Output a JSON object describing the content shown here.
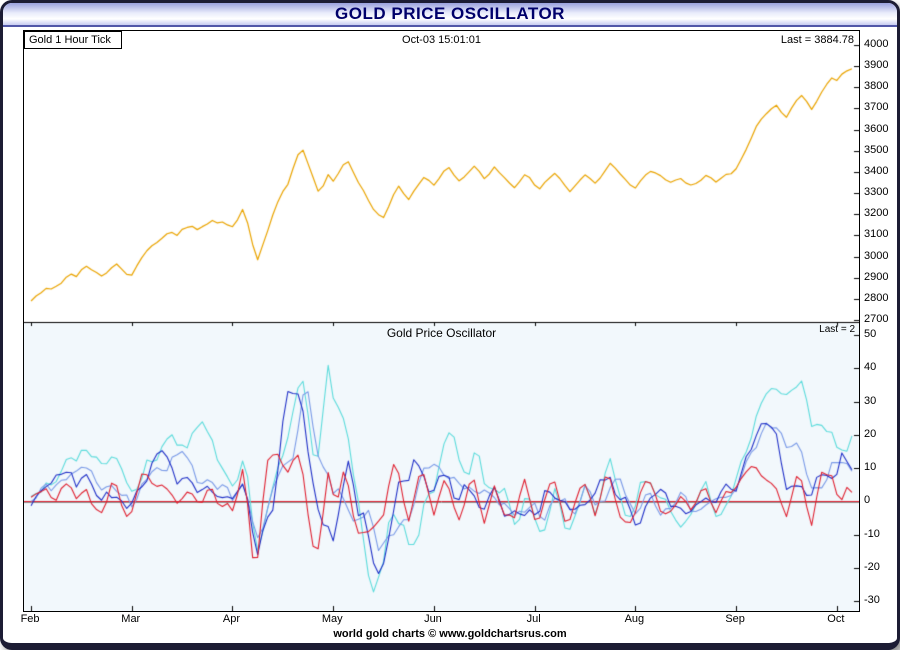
{
  "header": {
    "title": "GOLD PRICE OSCILLATOR"
  },
  "price_panel": {
    "label": "Gold 1 Hour Tick",
    "timestamp": "Oct-03  15:01:01",
    "last_label": "Last = 3884.78"
  },
  "oscillator_panel": {
    "label": "Gold Price Oscillator",
    "last_label": "Last = 2"
  },
  "footer": {
    "credit": "world gold charts © www.goldchartsrus.com"
  },
  "colors": {
    "price_line": "#eaa400",
    "osc_fast": "#e02030",
    "osc_medium": "#2030c8",
    "osc_slow": "#7b9be8",
    "osc_slowest": "#5ddcdc",
    "zero_line": "#e02030",
    "header_text": "#00006a"
  },
  "chart_data": [
    {
      "panel": "price",
      "type": "line",
      "title": "Gold 1 Hour Tick",
      "timestamp": "Oct-03  15:01:01",
      "last": 3884.78,
      "x_unit": "months (0 = Feb, 8 = Oct)",
      "x_start": 0,
      "x_step": 0.05,
      "x_tick_labels": [
        "Feb",
        "Mar",
        "Apr",
        "May",
        "Jun",
        "Jul",
        "Aug",
        "Sep",
        "Oct"
      ],
      "ylim": [
        2700,
        4000
      ],
      "y_ticks": [
        2700,
        2800,
        2900,
        3000,
        3100,
        3200,
        3300,
        3400,
        3500,
        3600,
        3700,
        3800,
        3900,
        4000
      ],
      "series": [
        {
          "name": "gold-price",
          "color": "#eaa400",
          "noise": 7,
          "values": [
            2790,
            2808,
            2828,
            2848,
            2842,
            2862,
            2880,
            2903,
            2918,
            2908,
            2933,
            2948,
            2938,
            2924,
            2906,
            2928,
            2952,
            2963,
            2940,
            2916,
            2906,
            2952,
            2998,
            3028,
            3052,
            3073,
            3088,
            3103,
            3113,
            3098,
            3123,
            3138,
            3148,
            3128,
            3143,
            3158,
            3168,
            3153,
            3163,
            3148,
            3138,
            3178,
            3228,
            3158,
            3058,
            2986,
            3048,
            3118,
            3198,
            3258,
            3308,
            3348,
            3418,
            3478,
            3503,
            3438,
            3368,
            3308,
            3338,
            3388,
            3358,
            3398,
            3433,
            3443,
            3398,
            3348,
            3308,
            3268,
            3228,
            3198,
            3186,
            3238,
            3288,
            3328,
            3298,
            3268,
            3308,
            3348,
            3378,
            3358,
            3338,
            3368,
            3398,
            3418,
            3388,
            3358,
            3378,
            3408,
            3428,
            3398,
            3368,
            3388,
            3418,
            3398,
            3378,
            3348,
            3328,
            3358,
            3383,
            3368,
            3338,
            3318,
            3348,
            3378,
            3398,
            3368,
            3338,
            3308,
            3328,
            3358,
            3388,
            3368,
            3348,
            3378,
            3408,
            3438,
            3418,
            3388,
            3358,
            3338,
            3328,
            3358,
            3388,
            3408,
            3393,
            3378,
            3363,
            3348,
            3358,
            3373,
            3353,
            3338,
            3348,
            3363,
            3378,
            3368,
            3353,
            3368,
            3388,
            3398,
            3418,
            3458,
            3508,
            3558,
            3608,
            3648,
            3678,
            3698,
            3718,
            3688,
            3658,
            3698,
            3738,
            3758,
            3728,
            3698,
            3738,
            3778,
            3818,
            3848,
            3828,
            3858,
            3878,
            3884.78
          ]
        }
      ]
    },
    {
      "panel": "oscillator",
      "type": "line",
      "title": "Gold Price Oscillator",
      "last": 2,
      "ylim": [
        -30,
        50
      ],
      "y_ticks": [
        -30,
        -20,
        -10,
        0,
        10,
        20,
        30,
        40,
        50
      ],
      "zero_line_colors": [
        "#909090",
        "#e02030"
      ],
      "derived_from": "gold-price",
      "series": [
        {
          "name": "osc-slowest",
          "color": "#5ddcdc",
          "period": 14,
          "scale": 0.1,
          "noise": 1.6
        },
        {
          "name": "osc-slow",
          "color": "#7b9be8",
          "period": 10,
          "scale": 0.07,
          "noise": 1.6
        },
        {
          "name": "osc-medium",
          "color": "#2030c8",
          "period": 6,
          "scale": 0.09,
          "noise": 1.6
        },
        {
          "name": "osc-fast",
          "color": "#e02030",
          "period": 2,
          "scale": 0.1,
          "noise": 1.4
        }
      ]
    }
  ]
}
